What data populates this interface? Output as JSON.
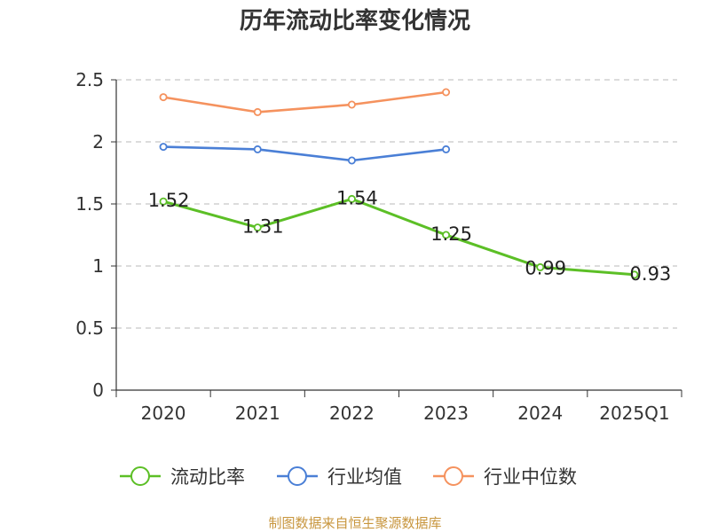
{
  "chart_data": {
    "type": "line",
    "title": "历年流动比率变化情况",
    "categories": [
      "2020",
      "2021",
      "2022",
      "2023",
      "2024",
      "2025Q1"
    ],
    "ylim": [
      0,
      2.5
    ],
    "yticks": [
      "0",
      "0.5",
      "1",
      "1.5",
      "2",
      "2.5"
    ],
    "ytick_values": [
      0,
      0.5,
      1,
      1.5,
      2,
      2.5
    ],
    "grid": true,
    "legend_position": "bottom",
    "series": [
      {
        "name": "流动比率",
        "color": "#5cbf26",
        "values": [
          1.52,
          1.31,
          1.54,
          1.25,
          0.99,
          0.93
        ],
        "labels": [
          "1.52",
          "1.31",
          "1.54",
          "1.25",
          "0.99",
          "0.93"
        ]
      },
      {
        "name": "行业均值",
        "color": "#4a7fd6",
        "values": [
          1.96,
          1.94,
          1.85,
          1.94,
          null,
          null
        ]
      },
      {
        "name": "行业中位数",
        "color": "#f5925e",
        "values": [
          2.36,
          2.24,
          2.3,
          2.4,
          null,
          null
        ]
      }
    ]
  },
  "footer": "制图数据来自恒生聚源数据库"
}
